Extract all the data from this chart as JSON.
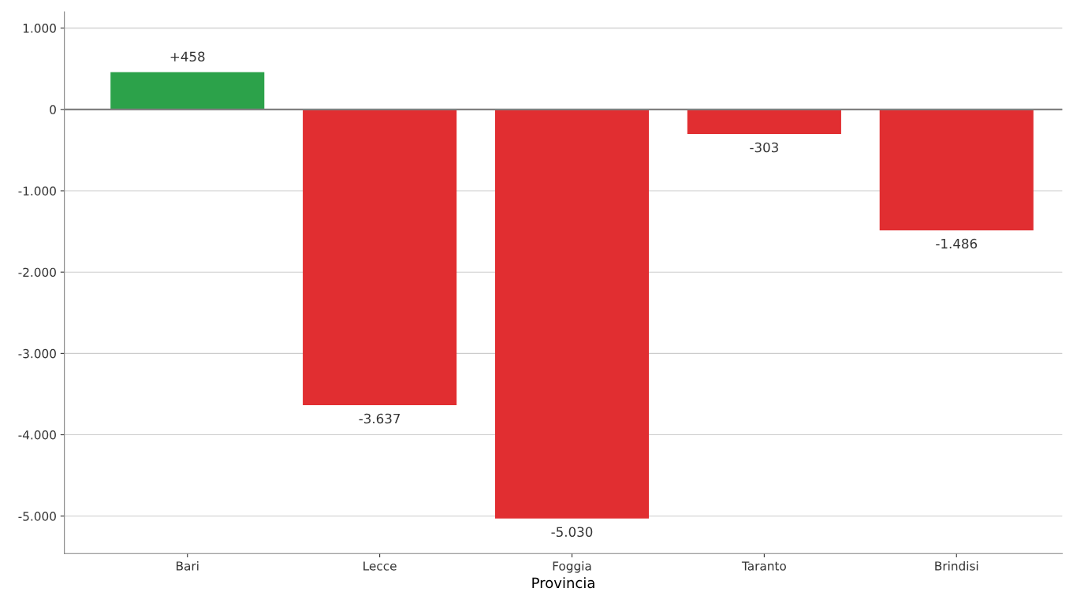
{
  "chart_data": {
    "type": "bar",
    "xlabel": "Provincia",
    "categories": [
      "Bari",
      "Lecce",
      "Foggia",
      "Taranto",
      "Brindisi"
    ],
    "values": [
      458,
      -3637,
      -5030,
      -303,
      -1486
    ],
    "colors": [
      "#2ca24a",
      "#e12e31",
      "#e12e31",
      "#e12e31",
      "#e12e31"
    ],
    "value_labels": [
      "+458",
      "-3.637",
      "-5.030",
      "-303",
      "-1.486"
    ],
    "ylim": [
      -5460,
      1200
    ],
    "yticks": [
      {
        "value": 1000,
        "label": "1.000"
      },
      0,
      {
        "value": -1000,
        "label": "-1.000"
      },
      {
        "value": -2000,
        "label": "-2.000"
      },
      {
        "value": -3000,
        "label": "-3.000"
      },
      {
        "value": -4000,
        "label": "-4.000"
      },
      {
        "value": -5000,
        "label": "-5.000"
      }
    ],
    "ref_lines": [
      {
        "axis": "y",
        "value": 0,
        "color": "#808080"
      }
    ],
    "grid": "y"
  }
}
